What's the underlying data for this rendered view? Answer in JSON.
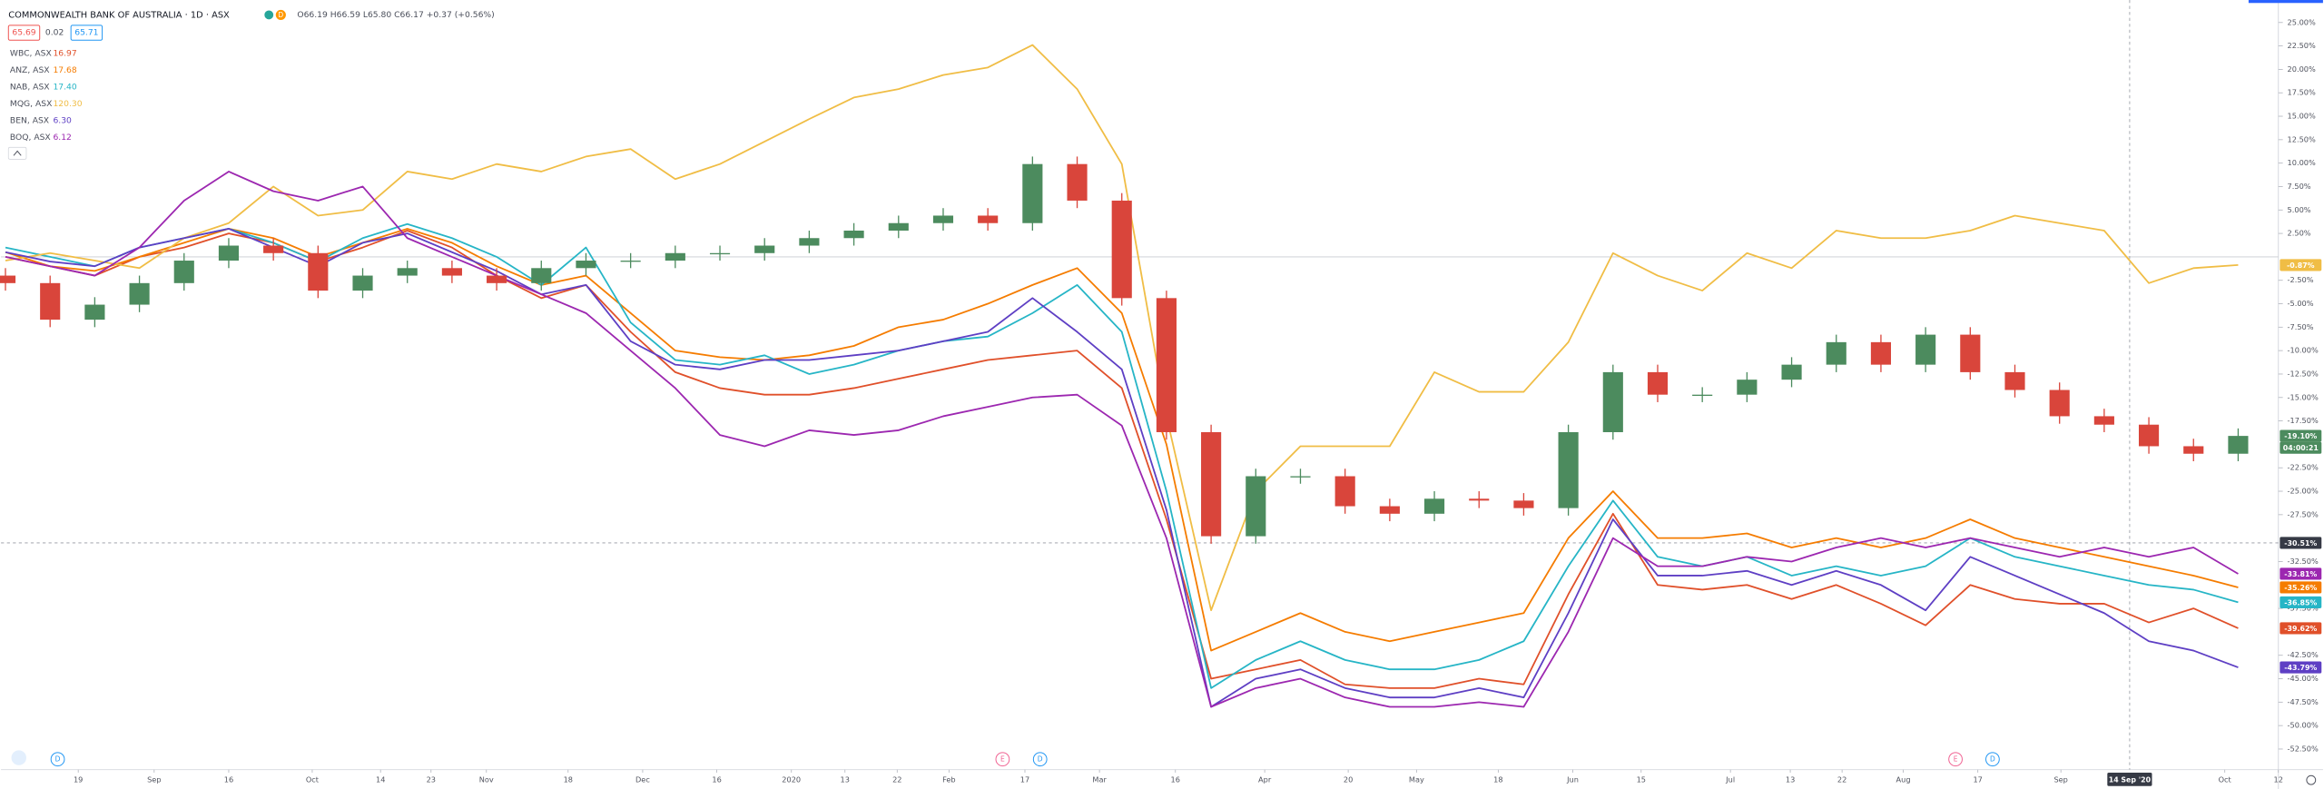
{
  "chart_data": {
    "type": "candlestick",
    "title": "COMMONWEALTH BANK OF AUSTRALIA · 1D · ASX",
    "header": {
      "badge": "D",
      "ohlc": "O66.19 H66.59 L65.80 C66.17 +0.37 (+0.56%)",
      "bid": "65.69",
      "spread": "0.02",
      "ask": "65.71"
    },
    "x": [
      0,
      1,
      2,
      3,
      4,
      5,
      6,
      7,
      8,
      9,
      10,
      11,
      12,
      13,
      14,
      15,
      16,
      17,
      18,
      19,
      20,
      21,
      22,
      23,
      24,
      25,
      26,
      27,
      28,
      29,
      30,
      31,
      32,
      33,
      34,
      35,
      36,
      37,
      38,
      39,
      40,
      41,
      42,
      43,
      44,
      45,
      46,
      47,
      48,
      49,
      50
    ],
    "xlim": [
      -0.1,
      50.9
    ],
    "xticks": [
      {
        "value": 1.63,
        "label": "19"
      },
      {
        "value": 3.33,
        "label": "Sep"
      },
      {
        "value": 5.0,
        "label": "16"
      },
      {
        "value": 6.87,
        "label": "Oct"
      },
      {
        "value": 8.4,
        "label": "14"
      },
      {
        "value": 9.53,
        "label": "23"
      },
      {
        "value": 10.77,
        "label": "Nov"
      },
      {
        "value": 12.6,
        "label": "18"
      },
      {
        "value": 14.27,
        "label": "Dec"
      },
      {
        "value": 15.93,
        "label": "16"
      },
      {
        "value": 17.6,
        "label": "2020"
      },
      {
        "value": 18.8,
        "label": "13"
      },
      {
        "value": 19.97,
        "label": "22"
      },
      {
        "value": 21.13,
        "label": "Feb"
      },
      {
        "value": 22.83,
        "label": "17"
      },
      {
        "value": 24.5,
        "label": "Mar"
      },
      {
        "value": 26.2,
        "label": "16"
      },
      {
        "value": 28.2,
        "label": "Apr"
      },
      {
        "value": 30.07,
        "label": "20"
      },
      {
        "value": 31.6,
        "label": "May"
      },
      {
        "value": 33.43,
        "label": "18"
      },
      {
        "value": 35.1,
        "label": "Jun"
      },
      {
        "value": 36.63,
        "label": "15"
      },
      {
        "value": 38.63,
        "label": "Jul"
      },
      {
        "value": 39.97,
        "label": "13"
      },
      {
        "value": 41.13,
        "label": "22"
      },
      {
        "value": 42.5,
        "label": "Aug"
      },
      {
        "value": 44.17,
        "label": "17"
      },
      {
        "value": 46.03,
        "label": "Sep"
      },
      {
        "value": 49.7,
        "label": "Oct"
      },
      {
        "value": 50.9,
        "label": "12"
      }
    ],
    "ylim": [
      -54.7,
      27.4
    ],
    "yticks": [
      {
        "value": 25,
        "label": "25.00%"
      },
      {
        "value": 22.5,
        "label": "22.50%"
      },
      {
        "value": 20,
        "label": "20.00%"
      },
      {
        "value": 17.5,
        "label": "17.50%"
      },
      {
        "value": 15,
        "label": "15.00%"
      },
      {
        "value": 12.5,
        "label": "12.50%"
      },
      {
        "value": 10,
        "label": "10.00%"
      },
      {
        "value": 7.5,
        "label": "7.50%"
      },
      {
        "value": 5,
        "label": "5.00%"
      },
      {
        "value": 2.5,
        "label": "2.50%"
      },
      {
        "value": -2.5,
        "label": "-2.50%"
      },
      {
        "value": -5,
        "label": "-5.00%"
      },
      {
        "value": -7.5,
        "label": "-7.50%"
      },
      {
        "value": -10,
        "label": "-10.00%"
      },
      {
        "value": -12.5,
        "label": "-12.50%"
      },
      {
        "value": -15,
        "label": "-15.00%"
      },
      {
        "value": -17.5,
        "label": "-17.50%"
      },
      {
        "value": -22.5,
        "label": "-22.50%"
      },
      {
        "value": -25,
        "label": "-25.00%"
      },
      {
        "value": -27.5,
        "label": "-27.50%"
      },
      {
        "value": -32.5,
        "label": "-32.50%"
      },
      {
        "value": -37.5,
        "label": "-37.50%"
      },
      {
        "value": -42.5,
        "label": "-42.50%"
      },
      {
        "value": -45,
        "label": "-45.00%"
      },
      {
        "value": -47.5,
        "label": "-47.50%"
      },
      {
        "value": -50,
        "label": "-50.00%"
      },
      {
        "value": -52.5,
        "label": "-52.50%"
      }
    ],
    "main": {
      "up_color": "#4c8b5e",
      "down_color": "#d9453b",
      "open": [
        -2,
        -2.8,
        -6.7,
        -5.1,
        -2.8,
        -0.4,
        1.2,
        0.4,
        -3.6,
        -2,
        -1.2,
        -2,
        -2.8,
        -1.2,
        -0.4,
        -0.4,
        0.4,
        0.4,
        1.2,
        2,
        2.8,
        3.6,
        4.4,
        3.6,
        9.9,
        6,
        -4.4,
        -18.7,
        -29.8,
        -23.4,
        -23.4,
        -26.6,
        -27.4,
        -25.8,
        -26,
        -26.8,
        -18.7,
        -12.3,
        -14.7,
        -14.7,
        -13.1,
        -11.5,
        -9.1,
        -11.5,
        -8.3,
        -12.3,
        -14.2,
        -17,
        -17.9,
        -20.2,
        -21
      ],
      "high": [
        -1.2,
        -2,
        -4.3,
        -2,
        0.4,
        2,
        2,
        1.2,
        -1.2,
        -0.4,
        -0.4,
        -1.2,
        -0.4,
        0.4,
        0.4,
        1.2,
        1.2,
        2,
        2.8,
        3.6,
        4.4,
        5.2,
        5.2,
        10.7,
        10.7,
        6.8,
        -3.6,
        -17.9,
        -22.6,
        -22.6,
        -22.6,
        -25.8,
        -25,
        -25,
        -25.2,
        -17.9,
        -11.5,
        -11.5,
        -13.9,
        -12.3,
        -10.7,
        -8.3,
        -8.3,
        -7.5,
        -7.5,
        -11.5,
        -13.4,
        -16.2,
        -17.1,
        -19.4,
        -18.3
      ],
      "low": [
        -3.6,
        -7.5,
        -7.5,
        -5.9,
        -3.6,
        -1.2,
        -0.4,
        -4.4,
        -4.4,
        -2.8,
        -2.8,
        -3.6,
        -3.6,
        -2,
        -1.2,
        -1.2,
        -0.4,
        -0.4,
        0.4,
        1.2,
        2,
        2.8,
        2.8,
        2.8,
        5.2,
        -5.2,
        -19.5,
        -30.6,
        -30.6,
        -24.2,
        -27.4,
        -28.2,
        -28.2,
        -26.8,
        -27.6,
        -27.6,
        -19.5,
        -15.5,
        -15.5,
        -15.5,
        -13.9,
        -12.3,
        -12.3,
        -12.3,
        -13.1,
        -15,
        -17.8,
        -18.7,
        -21,
        -21.8,
        -21.8
      ],
      "close": [
        -2.8,
        -6.7,
        -5.1,
        -2.8,
        -0.4,
        1.2,
        0.4,
        -3.6,
        -2,
        -1.2,
        -2,
        -2.8,
        -1.2,
        -0.4,
        -0.4,
        0.4,
        0.4,
        1.2,
        2,
        2.8,
        3.6,
        4.4,
        3.6,
        9.9,
        6,
        -4.4,
        -18.7,
        -29.8,
        -23.4,
        -23.4,
        -26.6,
        -27.4,
        -25.8,
        -26,
        -26.8,
        -18.7,
        -12.3,
        -14.7,
        -14.7,
        -13.1,
        -11.5,
        -9.1,
        -11.5,
        -8.3,
        -12.3,
        -14.2,
        -17,
        -17.9,
        -20.2,
        -21,
        -19.1
      ],
      "last_label": "-19.10%",
      "countdown": "04:00:21"
    },
    "series": [
      {
        "name": "WBC, ASX",
        "legend_value": "16.97",
        "color": "#e0502a",
        "last_label": "-39.62%",
        "values": [
          0,
          -1,
          -2,
          0,
          1,
          2.5,
          1.5,
          -0.5,
          1,
          2.8,
          1,
          -2,
          -4.4,
          -3,
          -8,
          -12.3,
          -14,
          -14.7,
          -14.7,
          -14,
          -13,
          -12,
          -11,
          -10.5,
          -10,
          -14,
          -28,
          -45,
          -44,
          -43,
          -45.6,
          -46,
          -46,
          -45,
          -45.6,
          -36,
          -27.4,
          -35,
          -35.5,
          -35,
          -36.5,
          -35,
          -37,
          -39.3,
          -35,
          -36.5,
          -37,
          -37,
          -39,
          -37.5,
          -39.62
        ]
      },
      {
        "name": "ANZ, ASX",
        "legend_value": "17.68",
        "color": "#f57c00",
        "last_label": "-35.26%",
        "values": [
          0.5,
          -1,
          -1.5,
          0,
          1.5,
          3,
          2,
          0,
          1.5,
          3,
          1.5,
          -1,
          -3,
          -2,
          -6,
          -10,
          -10.7,
          -11,
          -10.5,
          -9.5,
          -7.5,
          -6.7,
          -5,
          -3,
          -1.2,
          -6,
          -20,
          -42,
          -40,
          -38,
          -40,
          -41,
          -40,
          -39,
          -38,
          -30,
          -25,
          -30,
          -30,
          -29.5,
          -31,
          -30,
          -31,
          -30,
          -28,
          -30,
          -31,
          -32,
          -33,
          -34,
          -35.26
        ]
      },
      {
        "name": "NAB, ASX",
        "legend_value": "17.40",
        "color": "#26b5c6",
        "last_label": "-36.85%",
        "values": [
          1,
          0,
          -1,
          1,
          2,
          3,
          1.5,
          -0.5,
          2,
          3.5,
          2,
          0,
          -3,
          1,
          -7,
          -11,
          -11.5,
          -10.5,
          -12.5,
          -11.5,
          -10,
          -9,
          -8.5,
          -6,
          -3,
          -8,
          -25,
          -46,
          -43,
          -41,
          -43,
          -44,
          -44,
          -43,
          -41,
          -33,
          -26,
          -32,
          -33,
          -32,
          -34,
          -33,
          -34,
          -33,
          -30,
          -32,
          -33,
          -34,
          -35,
          -35.5,
          -36.85
        ]
      },
      {
        "name": "MQG, ASX",
        "legend_value": "120.30",
        "color": "#f0bd45",
        "last_label": "-0.87%",
        "values": [
          -0.4,
          0.4,
          -0.4,
          -1.2,
          2,
          3.6,
          7.5,
          4.4,
          5,
          9.1,
          8.3,
          9.9,
          9.1,
          10.7,
          11.5,
          8.3,
          9.9,
          12.3,
          14.7,
          17,
          17.9,
          19.4,
          20.2,
          22.6,
          17.9,
          9.9,
          -17,
          -37.7,
          -25,
          -20.2,
          -20.2,
          -20.2,
          -12.3,
          -14.4,
          -14.4,
          -9.1,
          0.4,
          -2,
          -3.6,
          0.4,
          -1.2,
          2.8,
          2,
          2,
          2.8,
          4.4,
          3.6,
          2.8,
          -2.8,
          -1.2,
          -0.87
        ]
      },
      {
        "name": "BEN, ASX",
        "legend_value": "6.30",
        "color": "#5e3fc4",
        "last_label": "-43.79%",
        "values": [
          0.5,
          -0.5,
          -1,
          1,
          2,
          3,
          1,
          -1,
          1.5,
          2.5,
          0.5,
          -1.5,
          -4,
          -3,
          -9,
          -11.5,
          -12,
          -11,
          -11,
          -10.5,
          -10,
          -9,
          -8,
          -4.4,
          -8,
          -12,
          -27,
          -48,
          -45,
          -44,
          -46,
          -47,
          -47,
          -46,
          -47,
          -38,
          -28,
          -34,
          -34,
          -33.5,
          -35,
          -33.5,
          -35,
          -37.7,
          -32,
          -34,
          -36,
          -38,
          -41,
          -42,
          -43.79
        ]
      },
      {
        "name": "BOQ, ASX",
        "legend_value": "6.12",
        "color": "#9c27b0",
        "last_label": "-33.81%",
        "values": [
          0,
          -1,
          -2,
          1,
          6,
          9.1,
          7,
          6,
          7.5,
          2,
          0,
          -2,
          -4,
          -6,
          -10,
          -14,
          -19,
          -20.2,
          -18.5,
          -19,
          -18.5,
          -17,
          -16,
          -15,
          -14.7,
          -18,
          -30,
          -48,
          -46,
          -45,
          -47,
          -48,
          -48,
          -47.5,
          -48,
          -40,
          -30,
          -33,
          -33,
          -32,
          -32.5,
          -31,
          -30,
          -31,
          -30,
          -31,
          -32,
          -31,
          -32,
          -31,
          -33.81
        ]
      }
    ],
    "crosshair": {
      "x": 47.57,
      "x_label": "14 Sep '20",
      "y": -30.51,
      "y_label": "-30.51%"
    },
    "events": [
      {
        "x": 1.17,
        "label": "D",
        "color": "#2196f3"
      },
      {
        "x": 22.33,
        "label": "E",
        "color": "#f06292"
      },
      {
        "x": 23.17,
        "label": "D",
        "color": "#2196f3"
      },
      {
        "x": 43.67,
        "label": "E",
        "color": "#f06292"
      },
      {
        "x": 44.5,
        "label": "D",
        "color": "#2196f3"
      }
    ]
  }
}
